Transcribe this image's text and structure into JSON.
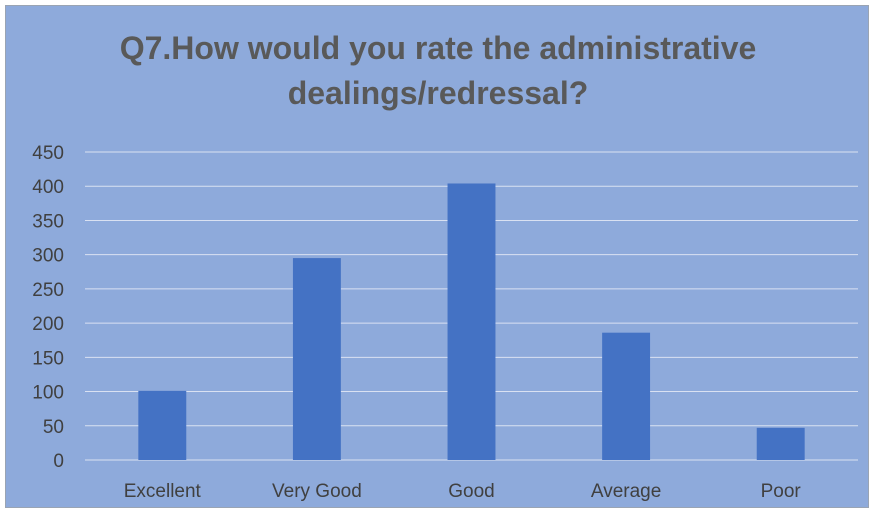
{
  "chart_data": {
    "type": "bar",
    "title": "Q7.How would you rate the administrative dealings/redressal?",
    "categories": [
      "Excellent",
      "Very Good",
      "Good",
      "Average",
      "Poor"
    ],
    "values": [
      101,
      295,
      404,
      186,
      47
    ],
    "ylim": [
      0,
      450
    ],
    "yticks": [
      0,
      50,
      100,
      150,
      200,
      250,
      300,
      350,
      400,
      450
    ],
    "xlabel": "",
    "ylabel": "",
    "grid": true,
    "legend": "none",
    "bar_color": "#4472c4",
    "background_color": "#8eaadb",
    "gridline_color": "#d9e1f2"
  }
}
